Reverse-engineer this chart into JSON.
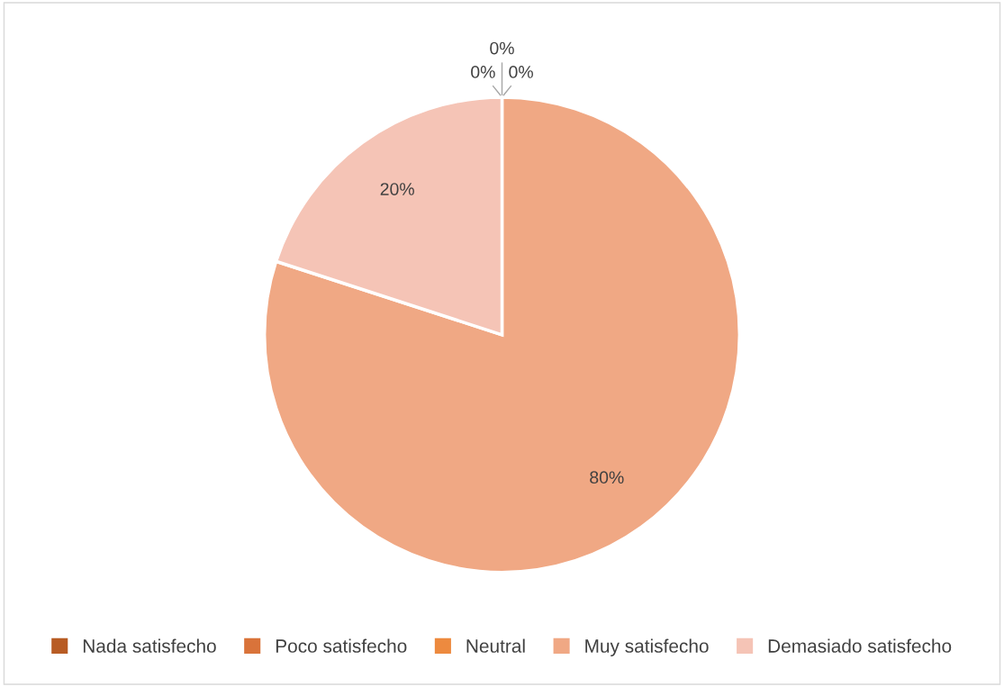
{
  "chart_data": {
    "type": "pie",
    "categories": [
      "Nada satisfecho",
      "Poco satisfecho",
      "Neutral",
      "Muy satisfecho",
      "Demasiado satisfecho"
    ],
    "values": [
      0,
      0,
      0,
      80,
      20
    ],
    "colors": [
      "#b85c24",
      "#d9733a",
      "#ed8a3f",
      "#f0a884",
      "#f5c4b6"
    ],
    "value_labels": [
      "0%",
      "0%",
      "0%",
      "80%",
      "20%"
    ],
    "legend": "bottom"
  }
}
